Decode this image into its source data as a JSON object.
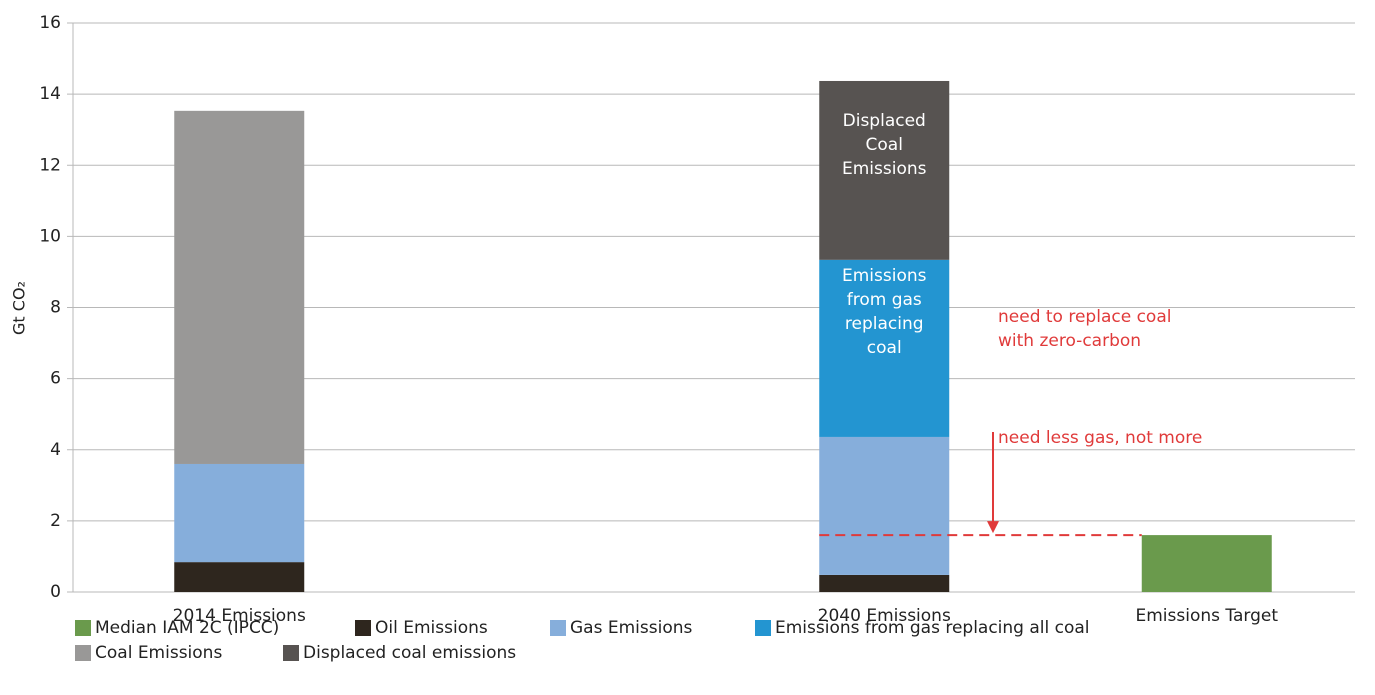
{
  "chart_data": {
    "type": "stacked_bar",
    "y_label": "Gt CO₂",
    "categories": [
      "2014 Emissions",
      null,
      "2040 Emissions",
      "Emissions Target"
    ],
    "series": [
      {
        "name": "Median IAM 2C (IPCC)",
        "color": "#6a9a4c",
        "values": [
          null,
          null,
          null,
          1.6
        ]
      },
      {
        "name": "Oil Emissions",
        "color": "#2e261e",
        "values": [
          0.84,
          null,
          0.48,
          null
        ]
      },
      {
        "name": "Gas Emissions",
        "color": "#86aedb",
        "values": [
          2.76,
          null,
          3.88,
          null
        ]
      },
      {
        "name": "Emissions from gas replacing all coal",
        "color": "#2395d1",
        "values": [
          null,
          null,
          4.98,
          null
        ]
      },
      {
        "name": "Coal Emissions",
        "color": "#999897",
        "values": [
          9.93,
          null,
          null,
          null
        ]
      },
      {
        "name": "Displaced coal emissions",
        "color": "#575351",
        "values": [
          null,
          null,
          5.03,
          null
        ]
      }
    ],
    "ylim": [
      0,
      16
    ],
    "yticks": [
      0,
      2,
      4,
      6,
      8,
      10,
      12,
      14,
      16
    ],
    "grid": true,
    "annotations": [
      {
        "lines": [
          "Displaced",
          "Coal",
          "Emissions"
        ]
      },
      {
        "lines": [
          "Emissions",
          "from gas",
          "replacing",
          "coal"
        ]
      },
      {
        "lines": [
          "need to replace coal",
          "with zero-carbon"
        ]
      },
      {
        "lines": [
          "need less gas, not more"
        ]
      }
    ]
  }
}
